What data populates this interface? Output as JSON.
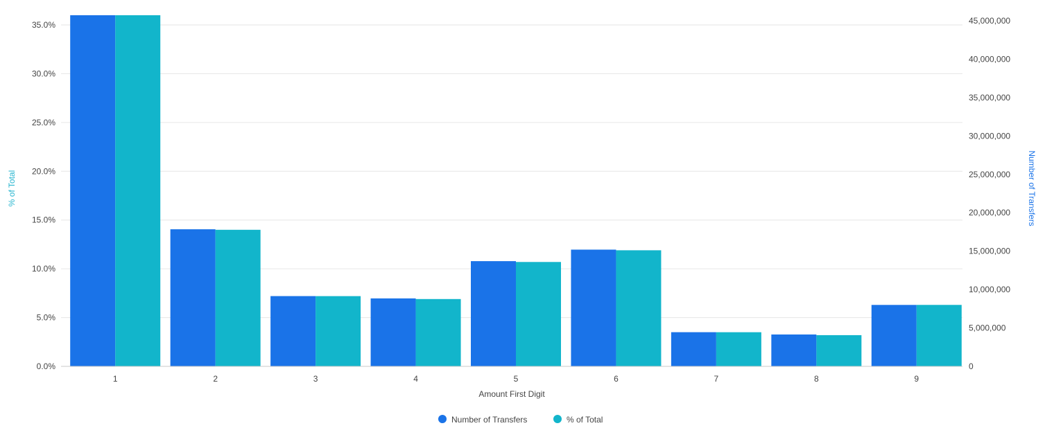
{
  "chart_data": {
    "type": "bar",
    "xlabel": "Amount First Digit",
    "categories": [
      "1",
      "2",
      "3",
      "4",
      "5",
      "6",
      "7",
      "8",
      "9"
    ],
    "y_left": {
      "label": "% of Total",
      "range": [
        0,
        35
      ],
      "ticks": [
        "0.0%",
        "5.0%",
        "10.0%",
        "15.0%",
        "20.0%",
        "25.0%",
        "30.0%",
        "35.0%"
      ],
      "color": "#27b5cf"
    },
    "y_right": {
      "label": "Number of Transfers",
      "range": [
        0,
        45000000
      ],
      "ticks": [
        "0",
        "5,000,000",
        "10,000,000",
        "15,000,000",
        "20,000,000",
        "25,000,000",
        "30,000,000",
        "35,000,000",
        "40,000,000",
        "45,000,000"
      ],
      "color": "#1a73e8"
    },
    "series": [
      {
        "name": "Number of Transfers",
        "axis": "right",
        "color": "#1a73e8",
        "values": [
          46000000,
          17850000,
          9150000,
          8850000,
          13700000,
          15200000,
          4450000,
          4150000,
          8000000
        ]
      },
      {
        "name": "% of Total",
        "axis": "left",
        "color": "#12b5cb",
        "values": [
          36.0,
          14.0,
          7.2,
          6.9,
          10.7,
          11.9,
          3.5,
          3.2,
          6.3
        ]
      }
    ],
    "grid": true,
    "legend_position": "bottom"
  }
}
